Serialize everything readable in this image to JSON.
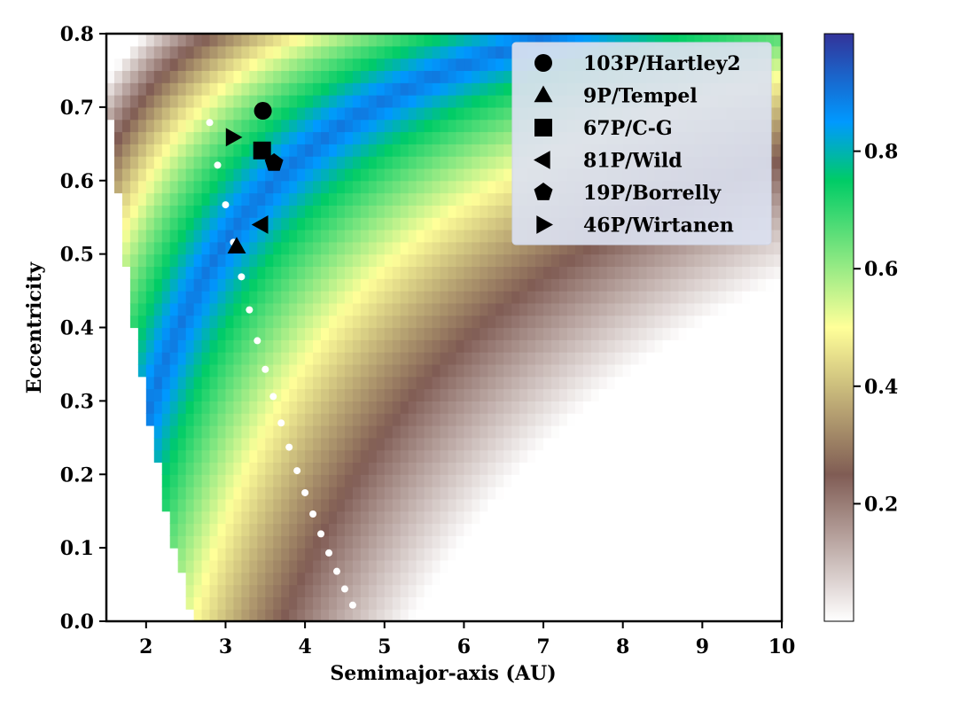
{
  "chart_data": {
    "type": "heatmap",
    "title": "",
    "xlabel": "Semimajor-axis (AU)",
    "ylabel": "Eccentricity",
    "xlim": [
      1.5,
      10
    ],
    "ylim": [
      0.0,
      0.8
    ],
    "xticks": [
      2,
      3,
      4,
      5,
      6,
      7,
      8,
      9,
      10
    ],
    "xtick_labels": [
      "2",
      "3",
      "4",
      "5",
      "6",
      "7",
      "8",
      "9",
      "10"
    ],
    "yticks": [
      0.0,
      0.1,
      0.2,
      0.3,
      0.4,
      0.5,
      0.6,
      0.7,
      0.8
    ],
    "ytick_labels": [
      "0.0",
      "0.1",
      "0.2",
      "0.3",
      "0.4",
      "0.5",
      "0.6",
      "0.7",
      "0.8"
    ],
    "colorbar": {
      "colormap": "terrain_r",
      "range": [
        0.0,
        1.0
      ],
      "ticks": [
        0.2,
        0.4,
        0.6,
        0.8
      ],
      "tick_labels": [
        "0.2",
        "0.4",
        "0.6",
        "0.8"
      ]
    },
    "heatmap_model": {
      "description": "Value ~ 0.9 - 0.69*ln(a*e/q_peak) on the log-distance from a curve of constant perihelion; region with aphelion below ~2.6 AU is blank",
      "q_peak": 1.45,
      "blank_aphelion_max": 2.6
    },
    "dotted_curve": {
      "name": "white-dotted-curve",
      "color": "#ffffff",
      "a": [
        2.8,
        2.9,
        3.0,
        3.1,
        3.2,
        3.3,
        3.4,
        3.5,
        3.6,
        3.7,
        3.8,
        3.9,
        4.0,
        4.1,
        4.2,
        4.3,
        4.4,
        4.5,
        4.6
      ],
      "e": [
        0.679,
        0.621,
        0.567,
        0.516,
        0.469,
        0.424,
        0.382,
        0.343,
        0.306,
        0.27,
        0.237,
        0.205,
        0.175,
        0.146,
        0.119,
        0.093,
        0.068,
        0.044,
        0.022
      ]
    },
    "series": [
      {
        "name": "103P/Hartley2",
        "marker": "circle",
        "a": 3.47,
        "e": 0.695
      },
      {
        "name": "9P/Tempel",
        "marker": "triangle-up",
        "a": 3.14,
        "e": 0.51
      },
      {
        "name": "67P/C-G",
        "marker": "square",
        "a": 3.46,
        "e": 0.641
      },
      {
        "name": "81P/Wild",
        "marker": "triangle-left",
        "a": 3.45,
        "e": 0.54
      },
      {
        "name": "19P/Borrelly",
        "marker": "pentagon",
        "a": 3.61,
        "e": 0.624
      },
      {
        "name": "46P/Wirtanen",
        "marker": "triangle-right",
        "a": 3.09,
        "e": 0.659
      }
    ],
    "legend": {
      "placement": "top-right",
      "entries": [
        "103P/Hartley2",
        "9P/Tempel",
        "67P/C-G",
        "81P/Wild",
        "19P/Borrelly",
        "46P/Wirtanen"
      ]
    }
  }
}
